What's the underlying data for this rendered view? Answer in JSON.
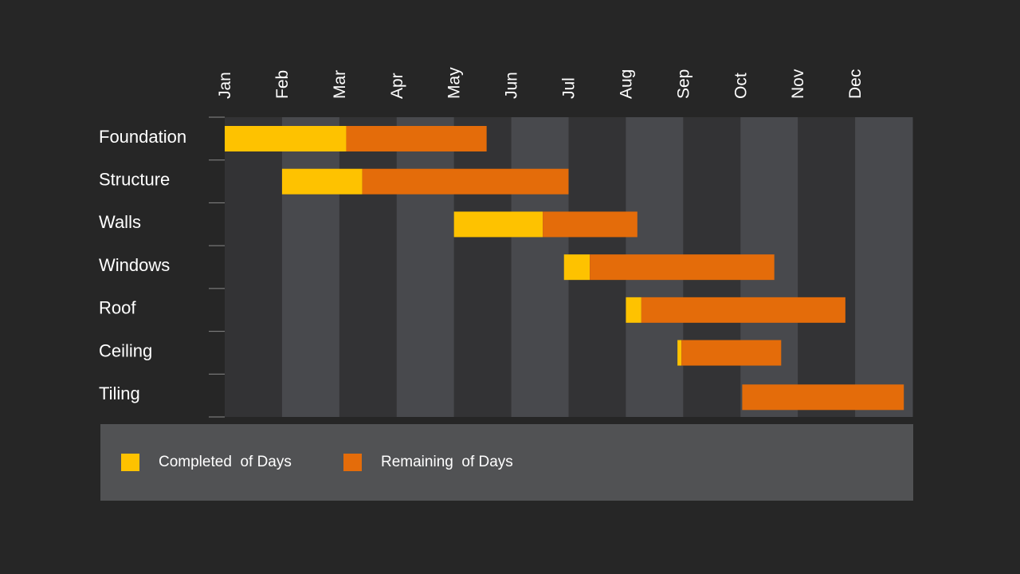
{
  "chart_data": {
    "type": "bar",
    "orientation": "horizontal-stacked-gantt",
    "months": [
      "Jan",
      "Feb",
      "Mar",
      "Apr",
      "May",
      "Jun",
      "Jul",
      "Aug",
      "Sep",
      "Oct",
      "Nov",
      "Dec"
    ],
    "x_unit": "months from Jan 1",
    "xlim": [
      0,
      12
    ],
    "grid": "alternating month bands",
    "tasks": [
      {
        "name": "Foundation",
        "start": 0.0,
        "completed": 2.12,
        "remaining": 2.45
      },
      {
        "name": "Structure",
        "start": 1.0,
        "completed": 1.4,
        "remaining": 3.6
      },
      {
        "name": "Walls",
        "start": 4.0,
        "completed": 1.55,
        "remaining": 1.65
      },
      {
        "name": "Windows",
        "start": 5.92,
        "completed": 0.45,
        "remaining": 3.22
      },
      {
        "name": "Roof",
        "start": 7.0,
        "completed": 0.27,
        "remaining": 3.56
      },
      {
        "name": "Ceiling",
        "start": 7.9,
        "completed": 0.07,
        "remaining": 1.74
      },
      {
        "name": "Tiling",
        "start": 9.03,
        "completed": 0.0,
        "remaining": 2.82
      }
    ],
    "series": [
      {
        "name": "Completed  of Days",
        "color": "#fec200"
      },
      {
        "name": "Remaining  of Days",
        "color": "#e46c0a"
      }
    ],
    "legend_position": "bottom"
  },
  "colors": {
    "background": "#262626",
    "band_dark": "#333335",
    "band_light": "#48494d",
    "legend_bg": "#515254"
  }
}
